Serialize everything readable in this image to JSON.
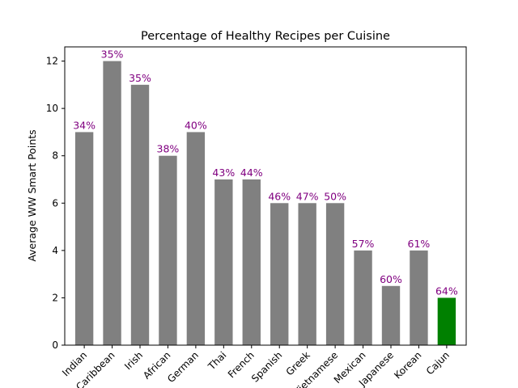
{
  "chart_data": {
    "type": "bar",
    "title": "Percentage of Healthy Recipes per Cuisine",
    "xlabel": "",
    "ylabel": "Average WW Smart Points",
    "categories": [
      "Indian",
      "Caribbean",
      "Irish",
      "African",
      "German",
      "Thai",
      "French",
      "Spanish",
      "Greek",
      "Vietnamese",
      "Mexican",
      "Japanese",
      "Korean",
      "Cajun"
    ],
    "values": [
      9,
      12,
      11,
      8,
      9,
      7,
      7,
      6,
      6,
      6,
      4,
      2.5,
      4,
      2
    ],
    "data_labels": [
      "34%",
      "35%",
      "35%",
      "38%",
      "40%",
      "43%",
      "44%",
      "46%",
      "47%",
      "50%",
      "57%",
      "60%",
      "61%",
      "64%"
    ],
    "bar_colors": [
      "#808080",
      "#808080",
      "#808080",
      "#808080",
      "#808080",
      "#808080",
      "#808080",
      "#808080",
      "#808080",
      "#808080",
      "#808080",
      "#808080",
      "#808080",
      "#008000"
    ],
    "label_color": "#800080",
    "ylim": [
      0,
      12.6
    ],
    "yticks": [
      0,
      2,
      4,
      6,
      8,
      10,
      12
    ],
    "grid": false,
    "legend": "none"
  }
}
